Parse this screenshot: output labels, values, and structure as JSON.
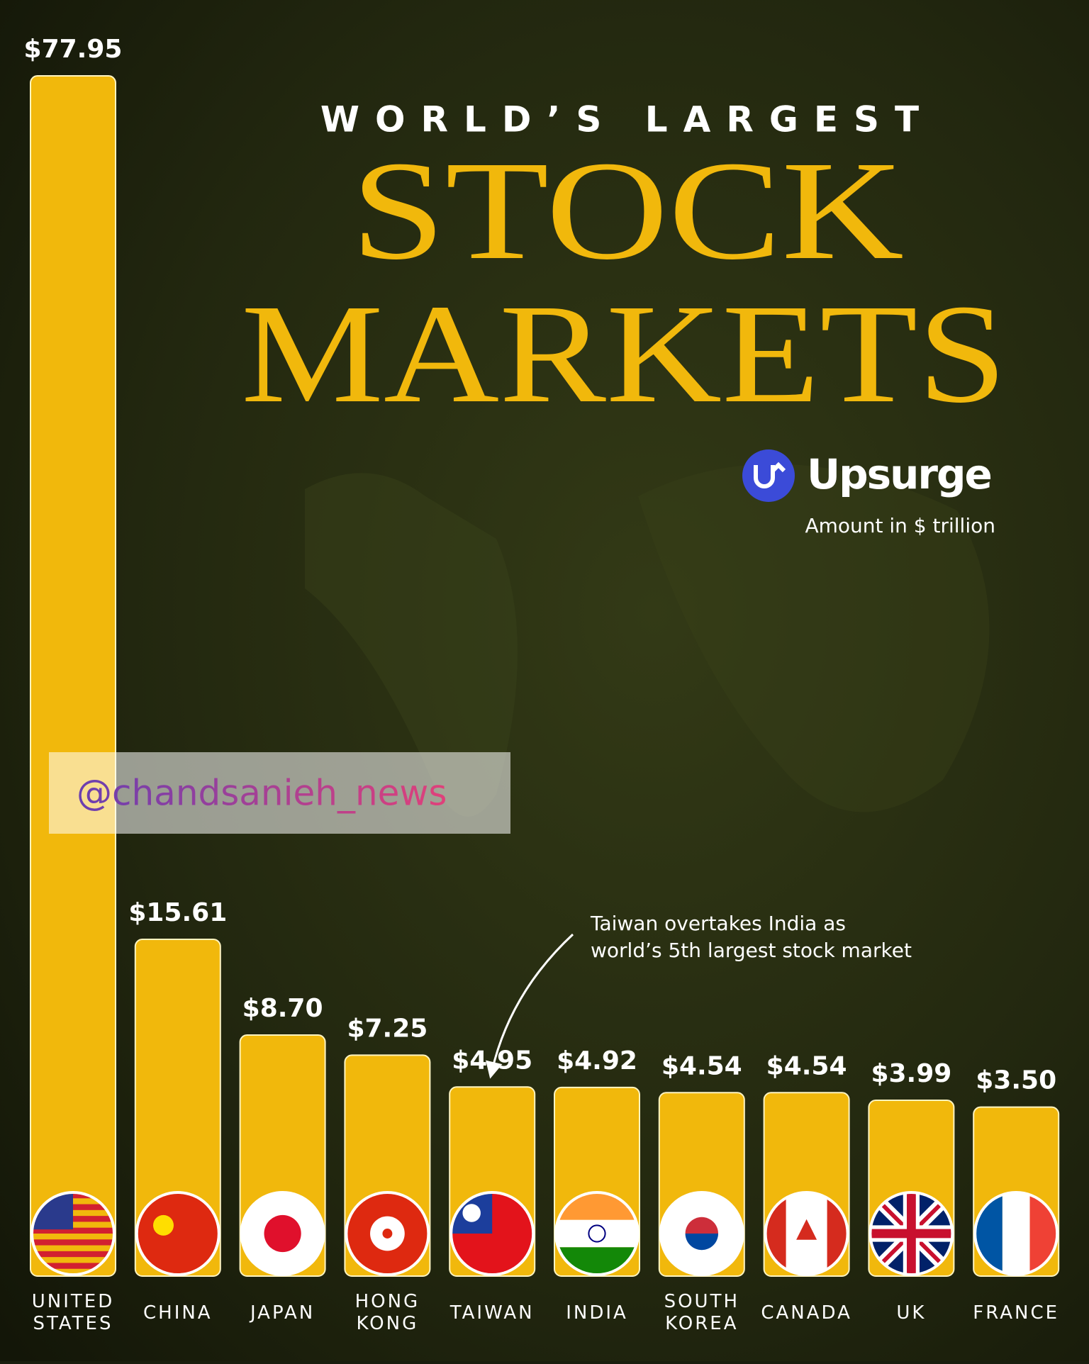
{
  "chart_data": {
    "type": "bar",
    "subtitle": "WORLD’S LARGEST",
    "title": "STOCK MARKETS",
    "brand": "Upsurge",
    "units": "Amount in $ trillion",
    "annotation": [
      "Taiwan overtakes India as",
      "world’s 5th largest stock market"
    ],
    "watermark": "@chandsanieh_news",
    "categories": [
      "UNITED STATES",
      "CHINA",
      "JAPAN",
      "HONG KONG",
      "TAIWAN",
      "INDIA",
      "SOUTH KOREA",
      "CANADA",
      "UK",
      "FRANCE"
    ],
    "values": [
      77.95,
      15.61,
      8.7,
      7.25,
      4.95,
      4.92,
      4.54,
      4.54,
      3.99,
      3.5
    ],
    "value_labels": [
      "$77.95",
      "$15.61",
      "$8.70",
      "$7.25",
      "$4.95",
      "$4.92",
      "$4.54",
      "$4.54",
      "$3.99",
      "$3.50"
    ],
    "color": "#f1b80c"
  }
}
